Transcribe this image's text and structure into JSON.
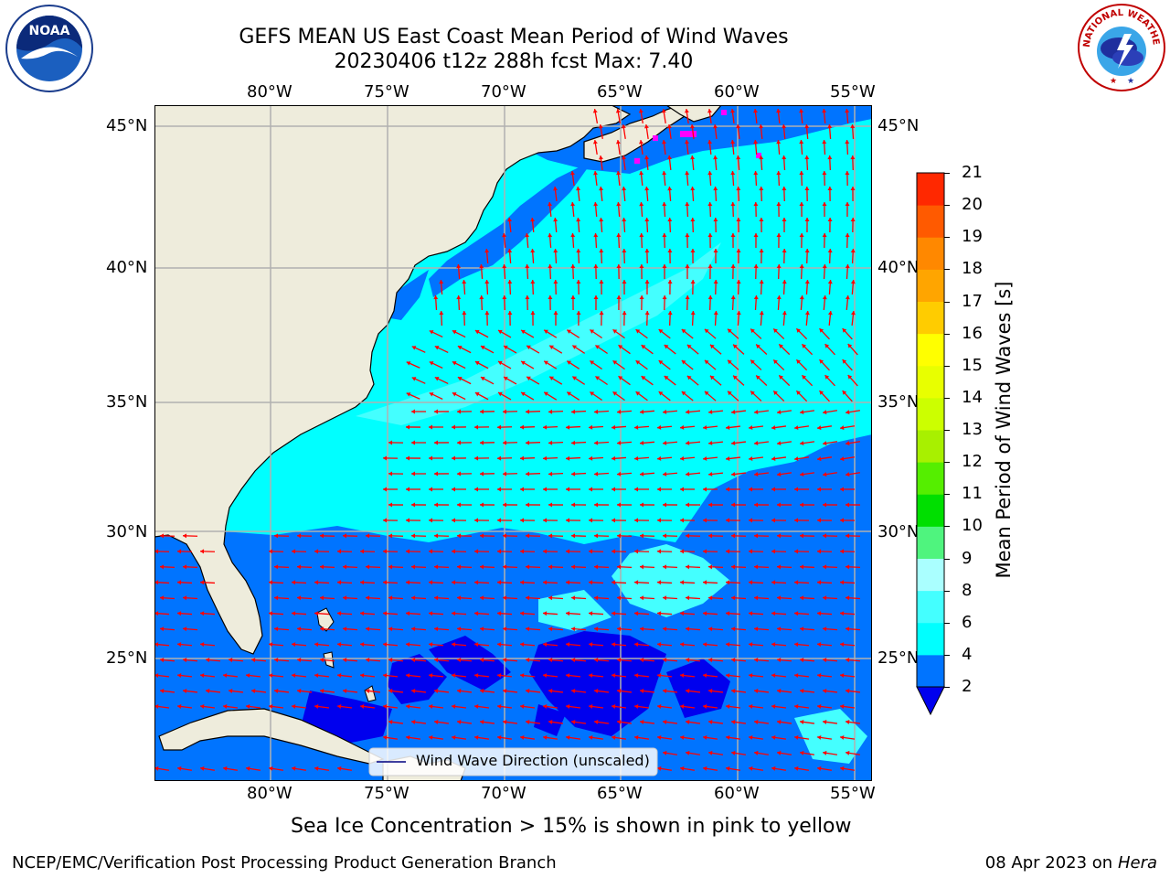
{
  "header": {
    "title": "GEFS MEAN US East Coast Mean Period of Wind Waves",
    "subtitle": "20230406 t12z 288h fcst   Max: 7.40"
  },
  "map": {
    "lon_labels": [
      "80°W",
      "75°W",
      "70°W",
      "65°W",
      "60°W",
      "55°W"
    ],
    "lat_labels": [
      "45°N",
      "40°N",
      "35°N",
      "30°N",
      "25°N"
    ],
    "legend_label": "Wind Wave Direction (unscaled)",
    "arrow_color": "#ff0000",
    "land_color": "#eeecdc"
  },
  "colorbar": {
    "label": "Mean Period of Wind Waves [s]",
    "ticks": [
      "2",
      "4",
      "6",
      "8",
      "9",
      "10",
      "11",
      "12",
      "13",
      "14",
      "15",
      "16",
      "17",
      "18",
      "19",
      "20",
      "21"
    ],
    "colors": [
      "#0074ff",
      "#00ffff",
      "#44ffff",
      "#aaffff",
      "#4ff47e",
      "#00df00",
      "#55ee00",
      "#a8f000",
      "#ccff00",
      "#e8ff00",
      "#ffff00",
      "#ffcc00",
      "#ffa500",
      "#ff8800",
      "#ff5a00",
      "#ff2800"
    ],
    "under_color": "#0000ee",
    "over_color": "#ff0000"
  },
  "notes": {
    "sea_ice": "Sea Ice Concentration > 15% is shown in pink to yellow"
  },
  "footer": {
    "left": "NCEP/EMC/Verification Post Processing Product Generation Branch",
    "date": "08 Apr 2023 on ",
    "machine": "Hera"
  },
  "logos": {
    "noaa_text": "NOAA",
    "nws_text": "NATIONAL WEATHER SERVICE"
  }
}
